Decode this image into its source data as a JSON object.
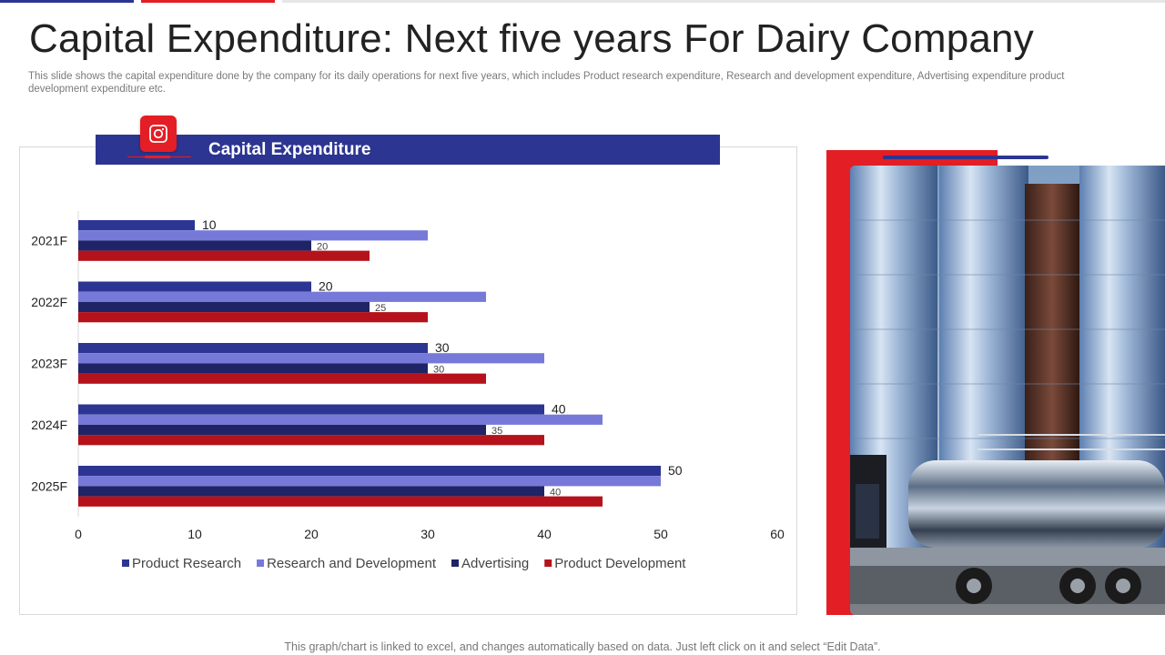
{
  "slide": {
    "title": "Capital Expenditure: Next five years For Dairy Company",
    "subtitle": "This slide shows the capital expenditure done by the company for its daily operations for next five years, which includes Product research expenditure, Research and development expenditure, Advertising expenditure product development expenditure etc.",
    "footer": "This graph/chart is linked to excel, and changes automatically based on data. Just left click on it and select “Edit Data”."
  },
  "banner": {
    "title": "Capital Expenditure",
    "icon": "camera-icon"
  },
  "colors": {
    "navy": "#2c3591",
    "periwinkle": "#7779d9",
    "dark_navy": "#1f2466",
    "red": "#e31e24",
    "dark_red": "#b5121b",
    "strip_gray": "#e6e6e6"
  },
  "chart_data": {
    "type": "bar",
    "orientation": "horizontal",
    "categories": [
      "2021F",
      "2022F",
      "2023F",
      "2024F",
      "2025F"
    ],
    "series": [
      {
        "name": "Product Research",
        "values": [
          10,
          20,
          30,
          40,
          50
        ],
        "color": "#2c3591",
        "show_labels": true
      },
      {
        "name": "Research and Development",
        "values": [
          30,
          35,
          40,
          45,
          50
        ],
        "color": "#7779d9",
        "show_labels": false
      },
      {
        "name": "Advertising",
        "values": [
          20,
          25,
          30,
          35,
          40
        ],
        "color": "#1f2466",
        "show_labels": true
      },
      {
        "name": "Product Development",
        "values": [
          25,
          30,
          35,
          40,
          45
        ],
        "color": "#b5121b",
        "show_labels": false
      }
    ],
    "xlim": [
      0,
      60
    ],
    "xticks": [
      0,
      10,
      20,
      30,
      40,
      50,
      60
    ],
    "grid": false,
    "legend": "bottom"
  }
}
